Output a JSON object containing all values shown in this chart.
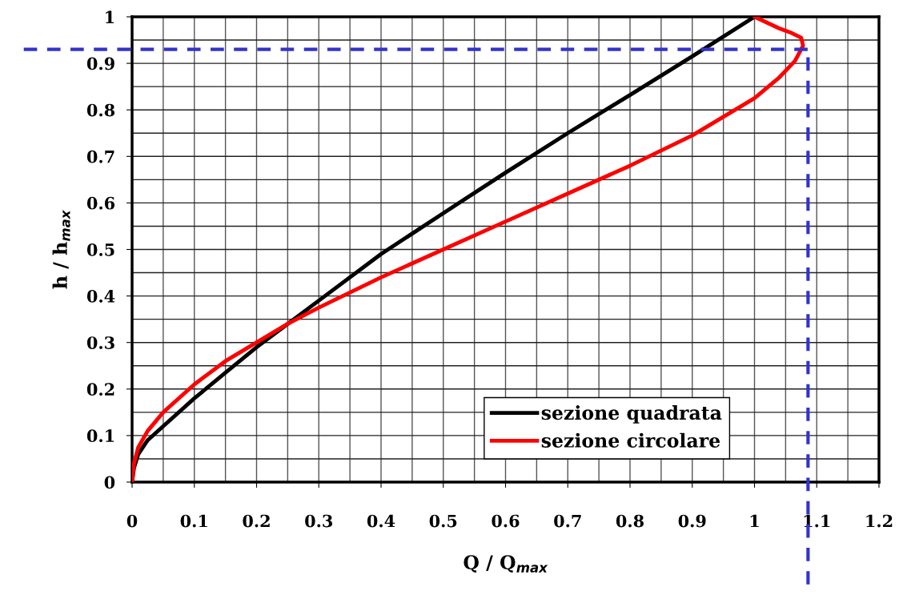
{
  "chart_data": {
    "type": "line",
    "xlabel": "Q / Q$_{max}$",
    "ylabel": "h / h$_{max}$",
    "xlim": [
      0,
      1.2
    ],
    "ylim": [
      0,
      1
    ],
    "xticks": [
      0,
      0.1,
      0.2,
      0.3,
      0.4,
      0.5,
      0.6,
      0.7,
      0.8,
      0.9,
      1,
      1.1,
      1.2
    ],
    "yticks": [
      0,
      0.1,
      0.2,
      0.3,
      0.4,
      0.5,
      0.6,
      0.7,
      0.8,
      0.9,
      1
    ],
    "grid": true,
    "legend": "bottom right",
    "marker": "none",
    "line_style": "solid",
    "series": [
      {
        "name": "sezione quadrata",
        "color": "#000000",
        "x": [
          0,
          0.003,
          0.01,
          0.025,
          0.05,
          0.1,
          0.15,
          0.2,
          0.25,
          0.3,
          0.4,
          0.5,
          0.6,
          0.7,
          0.8,
          0.9,
          1.0
        ],
        "values": [
          0,
          0.03,
          0.06,
          0.09,
          0.12,
          0.18,
          0.235,
          0.29,
          0.34,
          0.39,
          0.49,
          0.578,
          0.665,
          0.75,
          0.832,
          0.915,
          1.0
        ]
      },
      {
        "name": "sezione circolare",
        "color": "#ff0000",
        "x": [
          0,
          0.003,
          0.01,
          0.025,
          0.05,
          0.1,
          0.15,
          0.2,
          0.25,
          0.3,
          0.4,
          0.5,
          0.6,
          0.7,
          0.8,
          0.9,
          0.95,
          1.0,
          1.04,
          1.065,
          1.078,
          1.075,
          1.06,
          1.04,
          1.0
        ],
        "values": [
          0,
          0.04,
          0.075,
          0.11,
          0.15,
          0.21,
          0.26,
          0.3,
          0.34,
          0.375,
          0.44,
          0.5,
          0.56,
          0.62,
          0.68,
          0.745,
          0.785,
          0.825,
          0.87,
          0.905,
          0.938,
          0.955,
          0.965,
          0.975,
          1.0
        ]
      }
    ],
    "ref_lines": [
      {
        "axis": "y",
        "value": 0.93,
        "color": "#3333cc",
        "line_style": "dashed"
      },
      {
        "axis": "x",
        "value": 1.086,
        "color": "#3333cc",
        "line_style": "dashed"
      }
    ]
  }
}
